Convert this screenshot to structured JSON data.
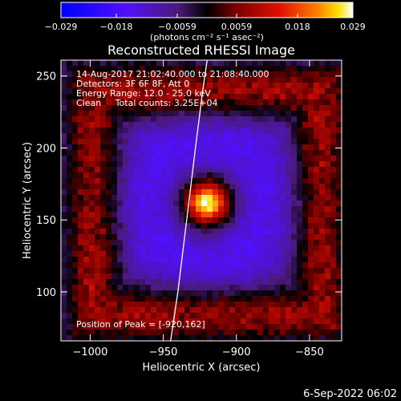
{
  "colorbar": {
    "tick_labels": [
      "−0.029",
      "−0.018",
      "−0.0059",
      "0.0059",
      "0.018",
      "0.029"
    ],
    "tick_values": [
      -0.029,
      -0.018,
      -0.0059,
      0.0059,
      0.018,
      0.029
    ],
    "range": [
      -0.029,
      0.029
    ],
    "units_label": "(photons cm⁻² s⁻¹ asec⁻²)"
  },
  "chart_data": {
    "type": "heatmap",
    "title": "Reconstructed RHESSI Image",
    "xlabel": "Heliocentric X (arcsec)",
    "ylabel": "Heliocentric Y (arcsec)",
    "xlim": [
      -1020,
      -828
    ],
    "ylim": [
      66,
      261
    ],
    "x_ticks": [
      -1000,
      -950,
      -900,
      -850
    ],
    "x_tick_labels": [
      "−1000",
      "−950",
      "−900",
      "−850"
    ],
    "y_ticks": [
      100,
      150,
      200,
      250
    ],
    "y_tick_labels": [
      "100",
      "150",
      "200",
      "250"
    ],
    "peak_position": [
      -920,
      162
    ],
    "annotations": [
      "14-Aug-2017 21:02:40.000 to 21:08:40.000",
      "Detectors: 3F 6F 8F, Att 0",
      "Energy Range: 12.0 - 25.0 keV",
      "Clean     Total counts: 3.25E+04",
      "Position of Peak = [-920,162]"
    ],
    "limb_curve_x": [
      -945,
      -940,
      -934,
      -928,
      -923,
      -920
    ],
    "limb_curve_y": [
      66,
      100,
      150,
      200,
      240,
      261
    ],
    "colormap": [
      "#0000ff",
      "#6600ff",
      "#7b3fbf",
      "#000000",
      "#8b0000",
      "#e01000",
      "#ff5a00",
      "#ffc000",
      "#ffffff"
    ]
  },
  "footer": {
    "timestamp": "6-Sep-2022 06:02"
  }
}
